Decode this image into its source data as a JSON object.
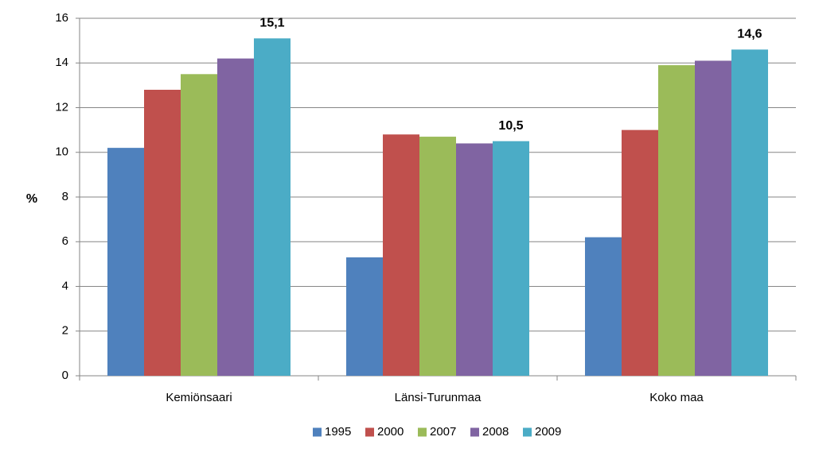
{
  "chart_data": {
    "type": "bar",
    "categories": [
      "Kemiönsaari",
      "Länsi-Turunmaa",
      "Koko maa"
    ],
    "y_label": "%",
    "series": [
      {
        "name": "1995",
        "color": "#4f81bd",
        "values": [
          10.2,
          5.3,
          6.2
        ]
      },
      {
        "name": "2000",
        "color": "#c0504d",
        "values": [
          12.8,
          10.8,
          11.0
        ]
      },
      {
        "name": "2007",
        "color": "#9bbb59",
        "values": [
          13.5,
          10.7,
          13.9
        ]
      },
      {
        "name": "2008",
        "color": "#8064a2",
        "values": [
          14.2,
          10.4,
          14.1
        ]
      },
      {
        "name": "2009",
        "color": "#4bacc6",
        "values": [
          15.1,
          10.5,
          14.6
        ],
        "value_labels": [
          "15,1",
          "10,5",
          "14,6"
        ]
      }
    ],
    "ylim": [
      0,
      16
    ],
    "yticks": [
      0,
      2,
      4,
      6,
      8,
      10,
      12,
      14,
      16
    ],
    "grid": true,
    "legend": "bottom"
  }
}
